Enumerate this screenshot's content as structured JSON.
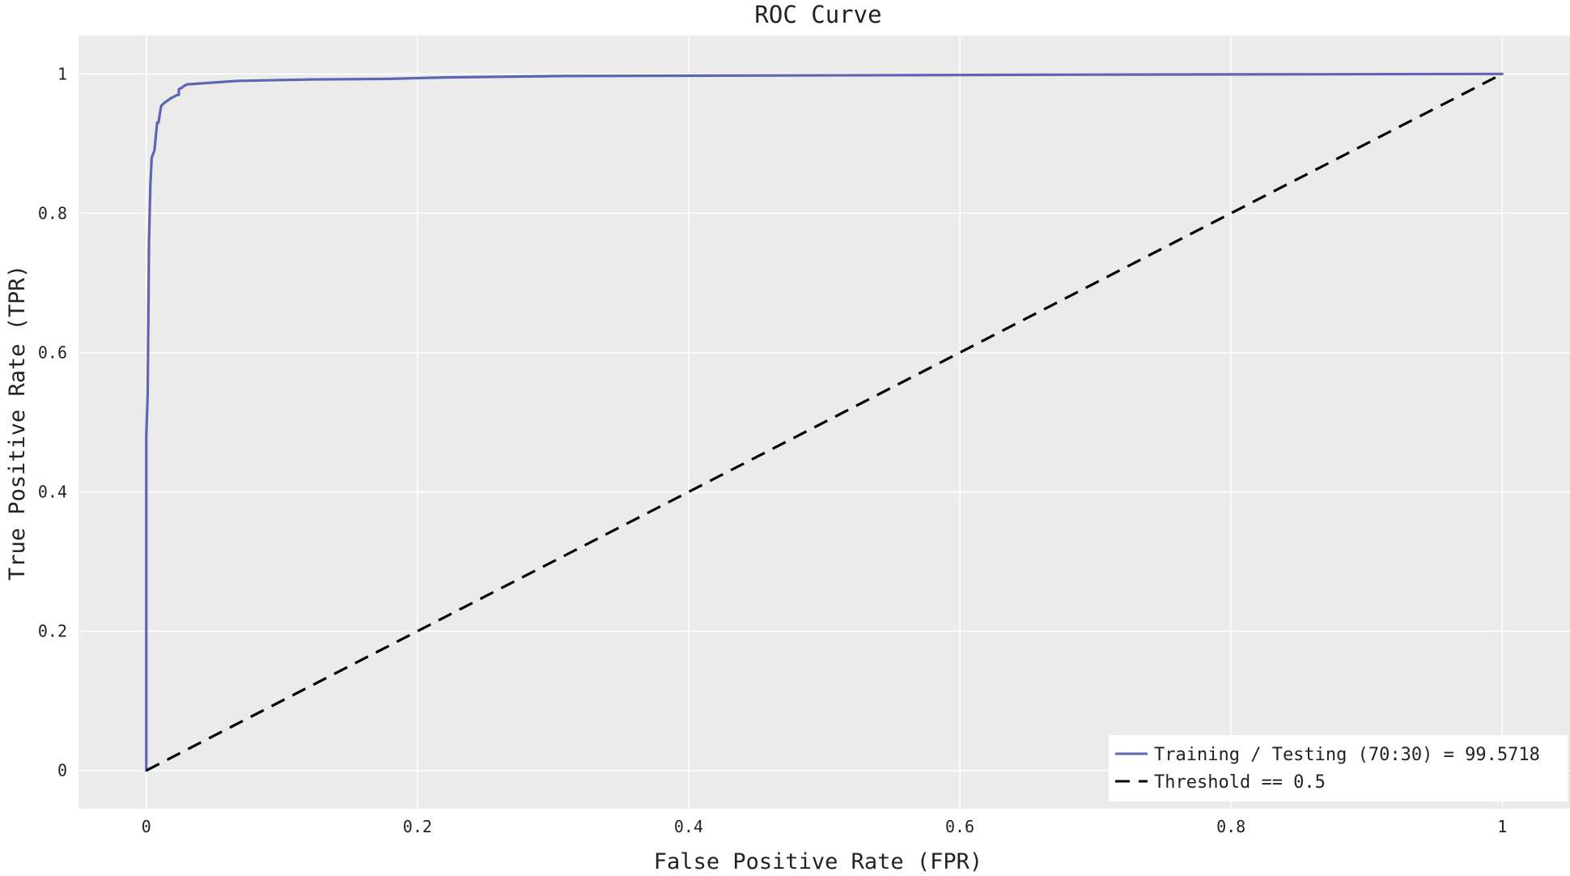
{
  "chart_data": {
    "type": "line",
    "title": "ROC Curve",
    "xlabel": "False Positive Rate (FPR)",
    "ylabel": "True Positive Rate (TPR)",
    "xlim": [
      -0.05,
      1.05
    ],
    "ylim": [
      -0.055,
      1.055
    ],
    "x_ticks": [
      0,
      0.2,
      0.4,
      0.6,
      0.8,
      1
    ],
    "x_tick_labels": [
      "0",
      "0.2",
      "0.4",
      "0.6",
      "0.8",
      "1"
    ],
    "y_ticks": [
      0,
      0.2,
      0.4,
      0.6,
      0.8,
      1
    ],
    "y_tick_labels": [
      "0",
      "0.2",
      "0.4",
      "0.6",
      "0.8",
      "1"
    ],
    "grid": true,
    "legend_position": "bottom-right",
    "background_color": "#ebebeb",
    "series": [
      {
        "name": "Training / Testing (70:30) = 99.5718",
        "color": "#5b67b4",
        "style": "solid",
        "x": [
          0,
          0.0,
          0.0,
          0.001,
          0.001,
          0.002,
          0.002,
          0.003,
          0.003,
          0.004,
          0.005,
          0.006,
          0.008,
          0.008,
          0.009,
          0.01,
          0.011,
          0.013,
          0.018,
          0.023,
          0.024,
          0.024,
          0.026,
          0.028,
          0.03,
          0.067,
          0.12,
          0.18,
          0.22,
          0.31,
          0.5,
          0.7,
          1.0
        ],
        "y": [
          0,
          0.48,
          0.48,
          0.54,
          0.54,
          0.76,
          0.76,
          0.84,
          0.84,
          0.88,
          0.885,
          0.89,
          0.93,
          0.93,
          0.93,
          0.943,
          0.954,
          0.958,
          0.965,
          0.97,
          0.97,
          0.978,
          0.98,
          0.983,
          0.985,
          0.99,
          0.992,
          0.993,
          0.995,
          0.997,
          0.998,
          0.999,
          1.0
        ]
      },
      {
        "name": "Threshold == 0.5",
        "color": "#000000",
        "style": "dashed",
        "x": [
          0,
          1
        ],
        "y": [
          0,
          1
        ]
      }
    ]
  }
}
